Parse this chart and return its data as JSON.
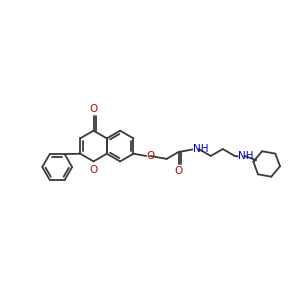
{
  "bg_color": "#ffffff",
  "bond_color": "#3a3a3a",
  "o_color": "#cc0000",
  "n_color": "#0000cc",
  "lw": 1.3,
  "figsize": [
    3.0,
    3.0
  ],
  "dpi": 100,
  "xlim": [
    0.0,
    3.0
  ],
  "ylim": [
    0.9,
    2.1
  ]
}
